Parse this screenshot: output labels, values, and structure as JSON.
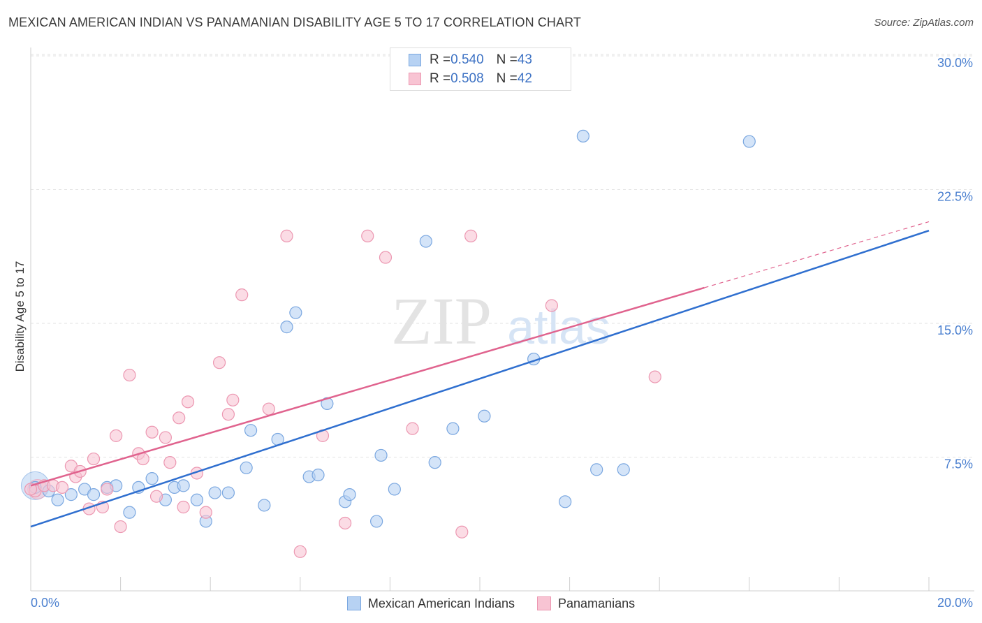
{
  "title": "MEXICAN AMERICAN INDIAN VS PANAMANIAN DISABILITY AGE 5 TO 17 CORRELATION CHART",
  "source": "Source: ZipAtlas.com",
  "watermark": {
    "zip": "ZIP",
    "atlas": "atlas"
  },
  "legend_top": [
    {
      "r_label": "R = ",
      "r_value": "0.540",
      "n_label": "N = ",
      "n_value": "43"
    },
    {
      "r_label": "R = ",
      "r_value": "0.508",
      "n_label": "N = ",
      "n_value": "42"
    }
  ],
  "colors": {
    "series1_fill": "#b7d2f3",
    "series1_stroke": "#7aa7e0",
    "series1_line": "#2f6fcf",
    "series2_fill": "#f8c4d3",
    "series2_stroke": "#ec97b1",
    "series2_line": "#e0638e",
    "tick_text": "#4a7fcf",
    "grid": "#e2e2e2"
  },
  "chart_data": {
    "type": "scatter",
    "ylabel": "Disability Age 5 to 17",
    "xlim": [
      0,
      20
    ],
    "ylim": [
      0,
      30
    ],
    "x_tick_labels": [
      "0.0%",
      "20.0%"
    ],
    "y_ticks": [
      7.5,
      15.0,
      22.5,
      30.0
    ],
    "y_tick_labels": [
      "7.5%",
      "15.0%",
      "22.5%",
      "30.0%"
    ],
    "grid": true,
    "legend_position": "top-center",
    "series": [
      {
        "name": "Mexican American Indians",
        "trend": {
          "x": [
            0,
            20
          ],
          "y": [
            3.6,
            20.2
          ]
        },
        "points": [
          [
            0.1,
            5.8
          ],
          [
            0.4,
            5.6
          ],
          [
            0.6,
            5.1
          ],
          [
            0.9,
            5.4
          ],
          [
            1.2,
            5.7
          ],
          [
            1.4,
            5.4
          ],
          [
            1.7,
            5.8
          ],
          [
            1.9,
            5.9
          ],
          [
            2.2,
            4.4
          ],
          [
            2.4,
            5.8
          ],
          [
            2.7,
            6.3
          ],
          [
            3.0,
            5.1
          ],
          [
            3.2,
            5.8
          ],
          [
            3.4,
            5.9
          ],
          [
            3.7,
            5.1
          ],
          [
            3.9,
            3.9
          ],
          [
            4.1,
            5.5
          ],
          [
            4.4,
            5.5
          ],
          [
            4.8,
            6.9
          ],
          [
            4.9,
            9.0
          ],
          [
            5.2,
            4.8
          ],
          [
            5.5,
            8.5
          ],
          [
            5.7,
            14.8
          ],
          [
            5.9,
            15.6
          ],
          [
            6.2,
            6.4
          ],
          [
            6.4,
            6.5
          ],
          [
            6.6,
            10.5
          ],
          [
            7.0,
            5.0
          ],
          [
            7.1,
            5.4
          ],
          [
            7.7,
            3.9
          ],
          [
            7.8,
            7.6
          ],
          [
            8.1,
            5.7
          ],
          [
            8.8,
            19.6
          ],
          [
            9.0,
            7.2
          ],
          [
            9.4,
            9.1
          ],
          [
            9.5,
            29.5
          ],
          [
            10.1,
            9.8
          ],
          [
            11.2,
            13.0
          ],
          [
            11.9,
            5.0
          ],
          [
            12.3,
            25.5
          ],
          [
            12.6,
            6.8
          ],
          [
            13.2,
            6.8
          ],
          [
            16.0,
            25.2
          ]
        ]
      },
      {
        "name": "Panamanians",
        "trend": {
          "x": [
            0,
            15
          ],
          "y": [
            5.9,
            17.0
          ]
        },
        "trend_extension": {
          "x": [
            15,
            20
          ],
          "y": [
            17.0,
            20.7
          ]
        },
        "points": [
          [
            0.1,
            5.6
          ],
          [
            0.3,
            5.9
          ],
          [
            0.5,
            5.9
          ],
          [
            0.7,
            5.8
          ],
          [
            0.9,
            7.0
          ],
          [
            1.0,
            6.4
          ],
          [
            1.1,
            6.7
          ],
          [
            1.3,
            4.6
          ],
          [
            1.4,
            7.4
          ],
          [
            1.6,
            4.7
          ],
          [
            1.7,
            5.7
          ],
          [
            1.9,
            8.7
          ],
          [
            2.0,
            3.6
          ],
          [
            2.2,
            12.1
          ],
          [
            2.4,
            7.7
          ],
          [
            2.5,
            7.4
          ],
          [
            2.7,
            8.9
          ],
          [
            2.8,
            5.3
          ],
          [
            3.0,
            8.6
          ],
          [
            3.1,
            7.2
          ],
          [
            3.3,
            9.7
          ],
          [
            3.4,
            4.7
          ],
          [
            3.5,
            10.6
          ],
          [
            3.7,
            6.6
          ],
          [
            3.9,
            4.4
          ],
          [
            4.2,
            12.8
          ],
          [
            4.4,
            9.9
          ],
          [
            4.5,
            10.7
          ],
          [
            4.7,
            16.6
          ],
          [
            5.3,
            10.2
          ],
          [
            5.7,
            19.9
          ],
          [
            6.0,
            2.2
          ],
          [
            6.5,
            8.7
          ],
          [
            7.0,
            3.8
          ],
          [
            7.5,
            19.9
          ],
          [
            7.9,
            18.7
          ],
          [
            8.5,
            9.1
          ],
          [
            9.6,
            3.3
          ],
          [
            9.8,
            19.9
          ],
          [
            11.6,
            16.0
          ],
          [
            13.9,
            12.0
          ],
          [
            0.0,
            5.7
          ]
        ]
      }
    ]
  }
}
